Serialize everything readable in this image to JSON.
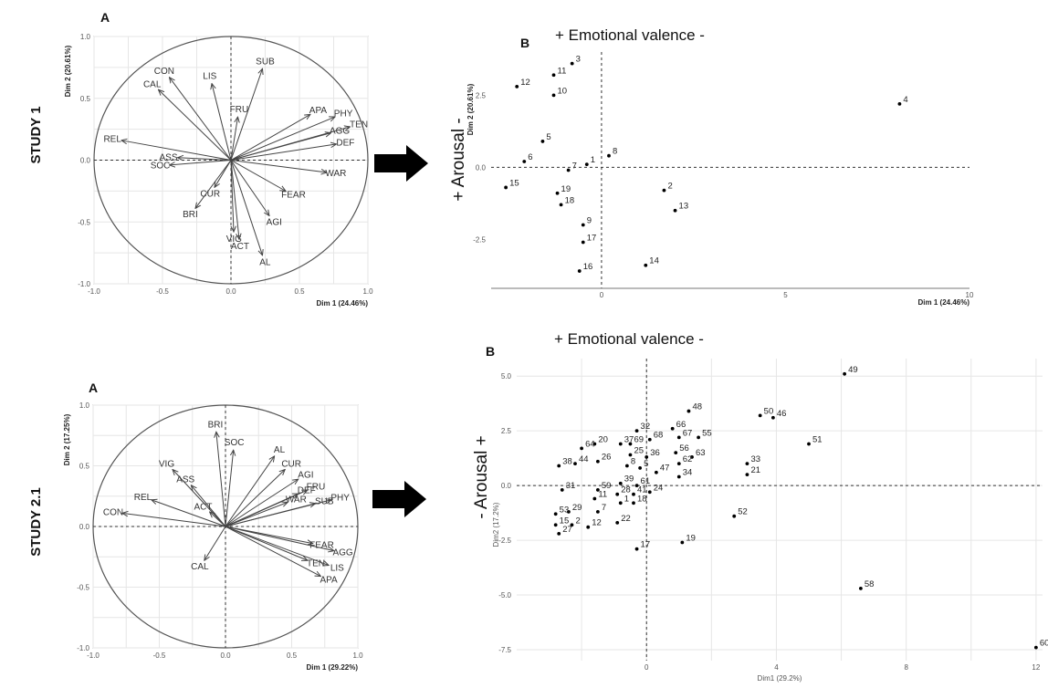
{
  "study_labels": [
    "STUDY 1",
    "STUDY 2.1"
  ],
  "panel_letters": {
    "a": "A",
    "b": "B"
  },
  "valence_title": "+ Emotional valence -",
  "arousal_labels": [
    "+ Arousal -",
    "- Arousal +"
  ],
  "colors": {
    "axis": "#000000",
    "circle": "#555555",
    "grid": "#e6e6e6",
    "points": "#000000",
    "arrow": "#000000"
  },
  "chart_data": [
    {
      "type": "scatter",
      "subtype": "correlation-circle",
      "panel": "A",
      "study": "STUDY 1",
      "xlabel": "Dim 1 (24.46%)",
      "ylabel": "Dim 2 (20.61%)",
      "xlim": [
        -1.0,
        1.0
      ],
      "ylim": [
        -1.0,
        1.0
      ],
      "xticks": [
        "-1.0",
        "-0.5",
        "0.0",
        "0.5",
        "1.0"
      ],
      "yticks": [
        "-1.0",
        "-0.5",
        "0.0",
        "0.5",
        "1.0"
      ],
      "grid": true,
      "vectors": [
        {
          "label": "SUB",
          "x": 0.23,
          "y": 0.74
        },
        {
          "label": "CON",
          "x": -0.45,
          "y": 0.67
        },
        {
          "label": "LIS",
          "x": -0.14,
          "y": 0.62
        },
        {
          "label": "CAL",
          "x": -0.53,
          "y": 0.57
        },
        {
          "label": "FRU",
          "x": 0.05,
          "y": 0.35
        },
        {
          "label": "APA",
          "x": 0.58,
          "y": 0.37
        },
        {
          "label": "PHY",
          "x": 0.76,
          "y": 0.35
        },
        {
          "label": "AGG",
          "x": 0.73,
          "y": 0.22
        },
        {
          "label": "TEN",
          "x": 0.87,
          "y": 0.27
        },
        {
          "label": "DEF",
          "x": 0.77,
          "y": 0.13
        },
        {
          "label": "REL",
          "x": -0.8,
          "y": 0.16
        },
        {
          "label": "ASS",
          "x": -0.39,
          "y": 0.02
        },
        {
          "label": "SOC",
          "x": -0.45,
          "y": -0.04
        },
        {
          "label": "WAR",
          "x": 0.7,
          "y": -0.1
        },
        {
          "label": "FEAR",
          "x": 0.4,
          "y": -0.25
        },
        {
          "label": "CUR",
          "x": -0.12,
          "y": -0.22
        },
        {
          "label": "BRI",
          "x": -0.26,
          "y": -0.39
        },
        {
          "label": "AGI",
          "x": 0.28,
          "y": -0.45
        },
        {
          "label": "VIG",
          "x": 0.02,
          "y": -0.58
        },
        {
          "label": "ACT",
          "x": 0.06,
          "y": -0.64
        },
        {
          "label": "AL",
          "x": 0.23,
          "y": -0.77
        }
      ]
    },
    {
      "type": "scatter",
      "panel": "B",
      "study": "STUDY 1",
      "xlabel": "Dim 1 (24.46%)",
      "ylabel": "Dim 2 (20.61%)",
      "xlim": [
        -3,
        10
      ],
      "ylim": [
        -4.2,
        4.0
      ],
      "xticks": [
        "0",
        "5",
        "10"
      ],
      "yticks": [
        "2.5",
        "0.0",
        "-2.5"
      ],
      "grid": false,
      "points": [
        {
          "label": "1",
          "x": -0.4,
          "y": 0.1
        },
        {
          "label": "2",
          "x": 1.7,
          "y": -0.8
        },
        {
          "label": "3",
          "x": -0.8,
          "y": 3.6
        },
        {
          "label": "4",
          "x": 8.1,
          "y": 2.2
        },
        {
          "label": "5",
          "x": -1.6,
          "y": 0.9
        },
        {
          "label": "6",
          "x": -2.1,
          "y": 0.2
        },
        {
          "label": "7",
          "x": -0.9,
          "y": -0.1
        },
        {
          "label": "8",
          "x": 0.2,
          "y": 0.4
        },
        {
          "label": "9",
          "x": -0.5,
          "y": -2.0
        },
        {
          "label": "10",
          "x": -1.3,
          "y": 2.5
        },
        {
          "label": "11",
          "x": -1.3,
          "y": 3.2
        },
        {
          "label": "12",
          "x": -2.3,
          "y": 2.8
        },
        {
          "label": "13",
          "x": 2.0,
          "y": -1.5
        },
        {
          "label": "14",
          "x": 1.2,
          "y": -3.4
        },
        {
          "label": "15",
          "x": -2.6,
          "y": -0.7
        },
        {
          "label": "16",
          "x": -0.6,
          "y": -3.6
        },
        {
          "label": "17",
          "x": -0.5,
          "y": -2.6
        },
        {
          "label": "18",
          "x": -1.1,
          "y": -1.3
        },
        {
          "label": "19",
          "x": -1.2,
          "y": -0.9
        }
      ]
    },
    {
      "type": "scatter",
      "subtype": "correlation-circle",
      "panel": "A",
      "study": "STUDY 2.1",
      "xlabel": "Dim 1 (29.22%)",
      "ylabel": "Dim 2 (17.25%)",
      "xlim": [
        -1.0,
        1.0
      ],
      "ylim": [
        -1.0,
        1.0
      ],
      "xticks": [
        "-1.0",
        "-0.5",
        "0.0",
        "0.5",
        "1.0"
      ],
      "yticks": [
        "-1.0",
        "-0.5",
        "0.0",
        "0.5",
        "1.0"
      ],
      "grid": true,
      "vectors": [
        {
          "label": "BRI",
          "x": -0.07,
          "y": 0.78
        },
        {
          "label": "SOC",
          "x": 0.06,
          "y": 0.63
        },
        {
          "label": "AL",
          "x": 0.37,
          "y": 0.58
        },
        {
          "label": "CUR",
          "x": 0.45,
          "y": 0.47
        },
        {
          "label": "VIG",
          "x": -0.4,
          "y": 0.47
        },
        {
          "label": "AGI",
          "x": 0.55,
          "y": 0.39
        },
        {
          "label": "ASS",
          "x": -0.26,
          "y": 0.34
        },
        {
          "label": "DEF",
          "x": 0.55,
          "y": 0.27
        },
        {
          "label": "FRU",
          "x": 0.62,
          "y": 0.3
        },
        {
          "label": "WAR",
          "x": 0.47,
          "y": 0.2
        },
        {
          "label": "SUB",
          "x": 0.68,
          "y": 0.19
        },
        {
          "label": "PHY",
          "x": 0.8,
          "y": 0.22
        },
        {
          "label": "REL",
          "x": -0.56,
          "y": 0.22
        },
        {
          "label": "ACT",
          "x": -0.12,
          "y": 0.12
        },
        {
          "label": "CON",
          "x": -0.78,
          "y": 0.11
        },
        {
          "label": "FEAR",
          "x": 0.66,
          "y": -0.14
        },
        {
          "label": "AGG",
          "x": 0.82,
          "y": -0.2
        },
        {
          "label": "TEN",
          "x": 0.62,
          "y": -0.28
        },
        {
          "label": "LIS",
          "x": 0.78,
          "y": -0.32
        },
        {
          "label": "APA",
          "x": 0.72,
          "y": -0.41
        },
        {
          "label": "CAL",
          "x": -0.16,
          "y": -0.28
        }
      ]
    },
    {
      "type": "scatter",
      "panel": "B",
      "study": "STUDY 2.1",
      "xlabel": "Dim1 (29.2%)",
      "ylabel": "Dim2 (17.2%)",
      "xlim": [
        -4,
        12.2
      ],
      "ylim": [
        -8,
        5.8
      ],
      "xticks": [
        "0",
        "4",
        "8",
        "12"
      ],
      "yticks": [
        "5.0",
        "2.5",
        "0.0",
        "-2.5",
        "-5.0",
        "-7.5"
      ],
      "grid": true,
      "points": [
        {
          "label": "49",
          "x": 6.1,
          "y": 5.1
        },
        {
          "label": "48",
          "x": 1.3,
          "y": 3.4
        },
        {
          "label": "50",
          "x": 3.5,
          "y": 3.2
        },
        {
          "label": "46",
          "x": 3.9,
          "y": 3.1
        },
        {
          "label": "66",
          "x": 0.8,
          "y": 2.6
        },
        {
          "label": "32",
          "x": -0.3,
          "y": 2.5
        },
        {
          "label": "67",
          "x": 1.0,
          "y": 2.2
        },
        {
          "label": "55",
          "x": 1.6,
          "y": 2.2
        },
        {
          "label": "68",
          "x": 0.1,
          "y": 2.1
        },
        {
          "label": "69",
          "x": -0.5,
          "y": 1.9
        },
        {
          "label": "37",
          "x": -0.8,
          "y": 1.9
        },
        {
          "label": "20",
          "x": -1.6,
          "y": 1.9
        },
        {
          "label": "51",
          "x": 5.0,
          "y": 1.9
        },
        {
          "label": "64",
          "x": -2.0,
          "y": 1.7
        },
        {
          "label": "56",
          "x": 0.9,
          "y": 1.5
        },
        {
          "label": "25",
          "x": -0.5,
          "y": 1.4
        },
        {
          "label": "36",
          "x": 0.0,
          "y": 1.3
        },
        {
          "label": "63",
          "x": 1.4,
          "y": 1.3
        },
        {
          "label": "26",
          "x": -1.5,
          "y": 1.1
        },
        {
          "label": "44",
          "x": -2.2,
          "y": 1.0
        },
        {
          "label": "62",
          "x": 1.0,
          "y": 1.0
        },
        {
          "label": "33",
          "x": 3.1,
          "y": 1.0
        },
        {
          "label": "38",
          "x": -2.7,
          "y": 0.9
        },
        {
          "label": "8",
          "x": -0.6,
          "y": 0.9
        },
        {
          "label": "5",
          "x": -0.2,
          "y": 0.8
        },
        {
          "label": "47",
          "x": 0.3,
          "y": 0.6
        },
        {
          "label": "21",
          "x": 3.1,
          "y": 0.5
        },
        {
          "label": "34",
          "x": 1.0,
          "y": 0.4
        },
        {
          "label": "39",
          "x": -0.8,
          "y": 0.1
        },
        {
          "label": "61",
          "x": -0.3,
          "y": 0.0
        },
        {
          "label": "59",
          "x": -1.5,
          "y": -0.2
        },
        {
          "label": "31",
          "x": -2.6,
          "y": -0.2
        },
        {
          "label": "24",
          "x": 0.1,
          "y": -0.3
        },
        {
          "label": "28",
          "x": -0.9,
          "y": -0.4
        },
        {
          "label": "41",
          "x": -0.4,
          "y": -0.4
        },
        {
          "label": "11",
          "x": -1.6,
          "y": -0.6
        },
        {
          "label": "1",
          "x": -0.8,
          "y": -0.8
        },
        {
          "label": "18",
          "x": -0.4,
          "y": -0.8
        },
        {
          "label": "52",
          "x": 2.7,
          "y": -1.4
        },
        {
          "label": "7",
          "x": -1.5,
          "y": -1.2
        },
        {
          "label": "29",
          "x": -2.4,
          "y": -1.2
        },
        {
          "label": "53",
          "x": -2.8,
          "y": -1.3
        },
        {
          "label": "15",
          "x": -2.8,
          "y": -1.8
        },
        {
          "label": "2",
          "x": -2.3,
          "y": -1.8
        },
        {
          "label": "12",
          "x": -1.8,
          "y": -1.9
        },
        {
          "label": "22",
          "x": -0.9,
          "y": -1.7
        },
        {
          "label": "27",
          "x": -2.7,
          "y": -2.2
        },
        {
          "label": "17",
          "x": -0.3,
          "y": -2.9
        },
        {
          "label": "19",
          "x": 1.1,
          "y": -2.6
        },
        {
          "label": "58",
          "x": 6.6,
          "y": -4.7
        },
        {
          "label": "60",
          "x": 12.0,
          "y": -7.4
        }
      ]
    }
  ]
}
